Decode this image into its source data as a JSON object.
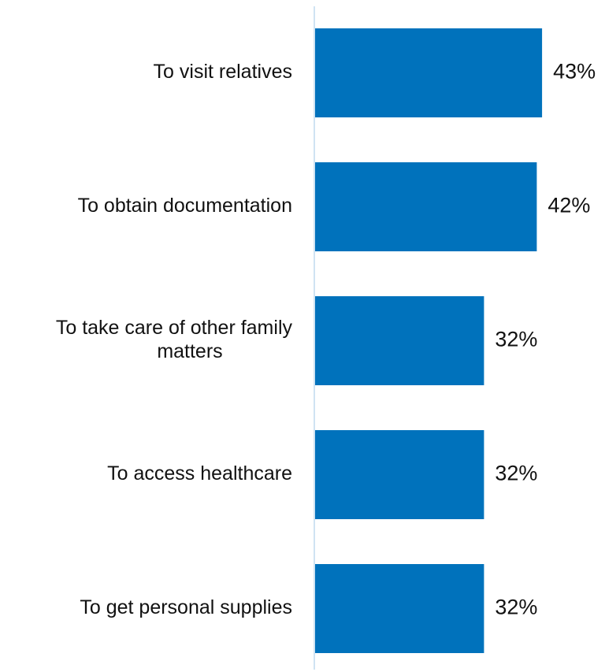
{
  "chart_data": {
    "type": "bar",
    "orientation": "horizontal",
    "categories": [
      "To visit relatives",
      "To obtain documentation",
      "To take care of other family matters",
      "To access healthcare",
      "To get personal supplies"
    ],
    "category_lines": [
      [
        "To visit relatives"
      ],
      [
        "To obtain documentation"
      ],
      [
        "To take care of other family",
        "matters"
      ],
      [
        "To access healthcare"
      ],
      [
        "To get personal supplies"
      ]
    ],
    "values": [
      43,
      42,
      32,
      32,
      32
    ],
    "value_labels": [
      "43%",
      "42%",
      "32%",
      "32%",
      "32%"
    ],
    "xlim": [
      0,
      55
    ],
    "grid": false,
    "legend": "none",
    "title": "",
    "xlabel": "",
    "ylabel": "",
    "colors": {
      "bar": "#0072bc",
      "axis": "#cfe3f3",
      "text": "#111111"
    }
  }
}
